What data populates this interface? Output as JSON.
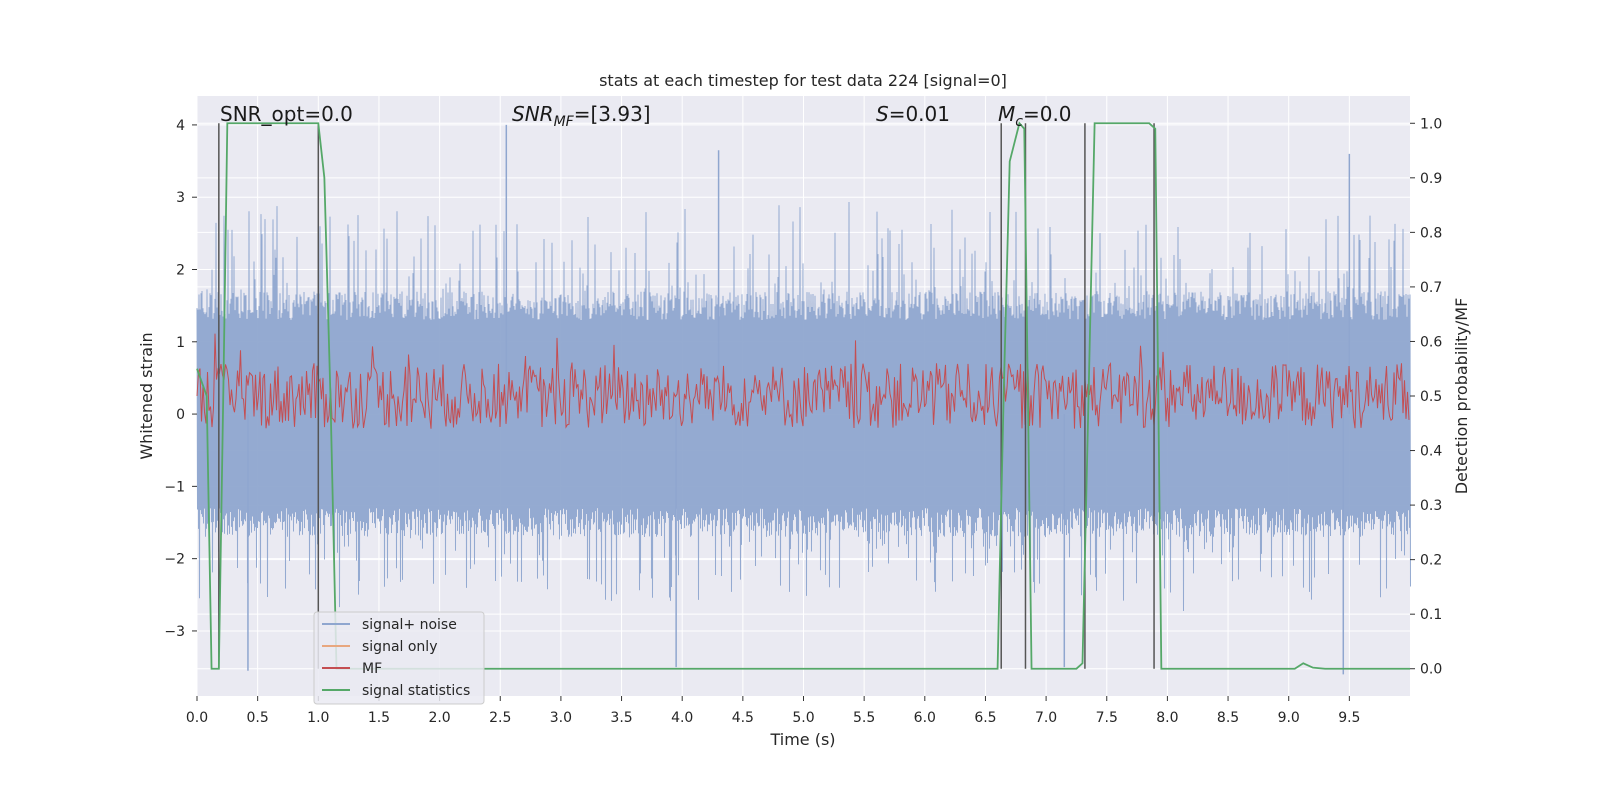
{
  "chart_data": {
    "type": "line",
    "title": "stats at each timestep for test data 224 [signal=0]",
    "xlabel": "Time (s)",
    "ylabel": "Whitened strain",
    "ylabel_right": "Detection probability/MF",
    "xlim": [
      0,
      10
    ],
    "ylim": [
      -3.9,
      4.4
    ],
    "ylim_right": [
      -0.05,
      1.05
    ],
    "x_ticks": [
      "0.0",
      "0.5",
      "1.0",
      "1.5",
      "2.0",
      "2.5",
      "3.0",
      "3.5",
      "4.0",
      "4.5",
      "5.0",
      "5.5",
      "6.0",
      "6.5",
      "7.0",
      "7.5",
      "8.0",
      "8.5",
      "9.0",
      "9.5"
    ],
    "y_ticks": [
      "4",
      "3",
      "2",
      "1",
      "0",
      "−1",
      "−2",
      "−3"
    ],
    "y_ticks_right": [
      "1.0",
      "0.9",
      "0.8",
      "0.7",
      "0.6",
      "0.5",
      "0.4",
      "0.3",
      "0.2",
      "0.1",
      "0.0"
    ],
    "grid": true,
    "legend_position": "lower-left",
    "annotations": {
      "snr_opt": "SNR_opt=0.0",
      "snr_mf_base": "SNR",
      "snr_mf_sub": "MF",
      "snr_mf_rest": "=[3.93]",
      "s_italic": "S",
      "s_rest": "=0.01",
      "mc_italic": "M",
      "mc_sub": "c",
      "mc_rest": "=0.0"
    },
    "series": [
      {
        "name": "signal+ noise",
        "color": "#8fa6cf",
        "axis": "left",
        "kind": "dense noise, amplitude approx ±1.7 with peaks to 4.0 and −3.6"
      },
      {
        "name": "signal only",
        "color": "#e8a77f",
        "axis": "left",
        "values": []
      },
      {
        "name": "MF",
        "color": "#c44e52",
        "axis": "right",
        "kind": "dense noise between 0.45 and 0.65"
      },
      {
        "name": "signal statistics",
        "color": "#55a868",
        "axis": "right",
        "x": [
          0.0,
          0.08,
          0.12,
          0.18,
          0.22,
          0.25,
          0.5,
          1.0,
          1.05,
          1.1,
          1.15,
          1.2,
          6.6,
          6.65,
          6.7,
          6.78,
          6.82,
          6.85,
          6.88,
          7.25,
          7.3,
          7.35,
          7.4,
          7.85,
          7.9,
          7.95,
          9.05,
          9.12,
          9.2,
          9.3,
          10.0
        ],
        "y": [
          0.55,
          0.5,
          0.0,
          0.0,
          0.55,
          1.0,
          1.0,
          1.0,
          0.9,
          0.5,
          0.0,
          0.0,
          0.0,
          0.5,
          0.93,
          1.0,
          0.99,
          0.5,
          0.0,
          0.0,
          0.01,
          0.5,
          1.0,
          1.0,
          0.99,
          0.0,
          0.0,
          0.01,
          0.002,
          0.0,
          0.0
        ]
      }
    ],
    "vlines_x": [
      0.18,
      1.0,
      6.63,
      6.83,
      7.32,
      7.89
    ]
  },
  "legend": {
    "items": [
      {
        "label": "signal+ noise",
        "color": "#8fa6cf"
      },
      {
        "label": "signal only",
        "color": "#e8a77f"
      },
      {
        "label": "MF",
        "color": "#c44e52"
      },
      {
        "label": "signal statistics",
        "color": "#55a868"
      }
    ]
  },
  "colors": {
    "plot_bg": "#eaeaf2",
    "grid": "#ffffff",
    "vline": "#555555"
  }
}
